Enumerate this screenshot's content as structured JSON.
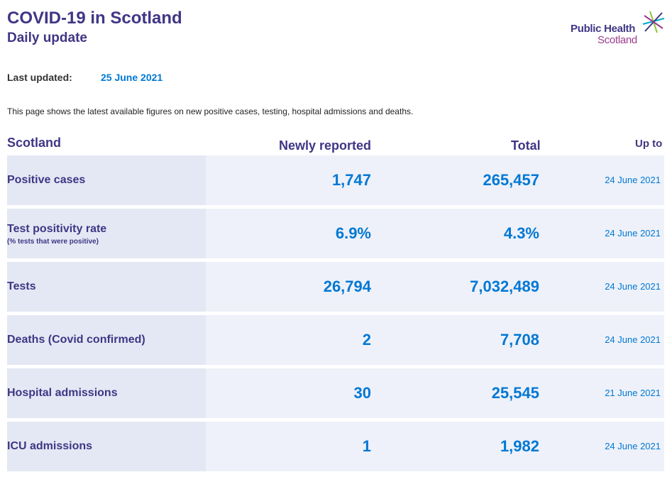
{
  "header": {
    "title": "COVID-19 in Scotland",
    "subtitle": "Daily update",
    "logo_line1": "Public Health",
    "logo_line2": "Scotland"
  },
  "last_updated": {
    "label": "Last updated:",
    "value": "25 June 2021"
  },
  "intro": "This page shows the latest available figures on new positive cases, testing, hospital admissions and deaths.",
  "table": {
    "headers": {
      "region": "Scotland",
      "newly": "Newly reported",
      "total": "Total",
      "up_to": "Up to"
    },
    "rows": [
      {
        "label": "Positive cases",
        "note": "",
        "new": "1,747",
        "total": "265,457",
        "up_to": "24 June 2021"
      },
      {
        "label": "Test positivity rate",
        "note": "(% tests that were positive)",
        "new": "6.9%",
        "total": "4.3%",
        "up_to": "24 June 2021"
      },
      {
        "label": "Tests",
        "note": "",
        "new": "26,794",
        "total": "7,032,489",
        "up_to": "24 June 2021"
      },
      {
        "label": "Deaths (Covid confirmed)",
        "note": "",
        "new": "2",
        "total": "7,708",
        "up_to": "24 June 2021"
      },
      {
        "label": "Hospital admissions",
        "note": "",
        "new": "30",
        "total": "25,545",
        "up_to": "21 June 2021"
      },
      {
        "label": "ICU admissions",
        "note": "",
        "new": "1",
        "total": "1,982",
        "up_to": "24 June 2021"
      }
    ]
  },
  "colors": {
    "brand_purple": "#3f3685",
    "value_blue": "#0078d4",
    "logo_magenta": "#9b3c8c",
    "row_bg": "#eef1f9"
  },
  "icons": {
    "logo": "phs-star-icon"
  }
}
